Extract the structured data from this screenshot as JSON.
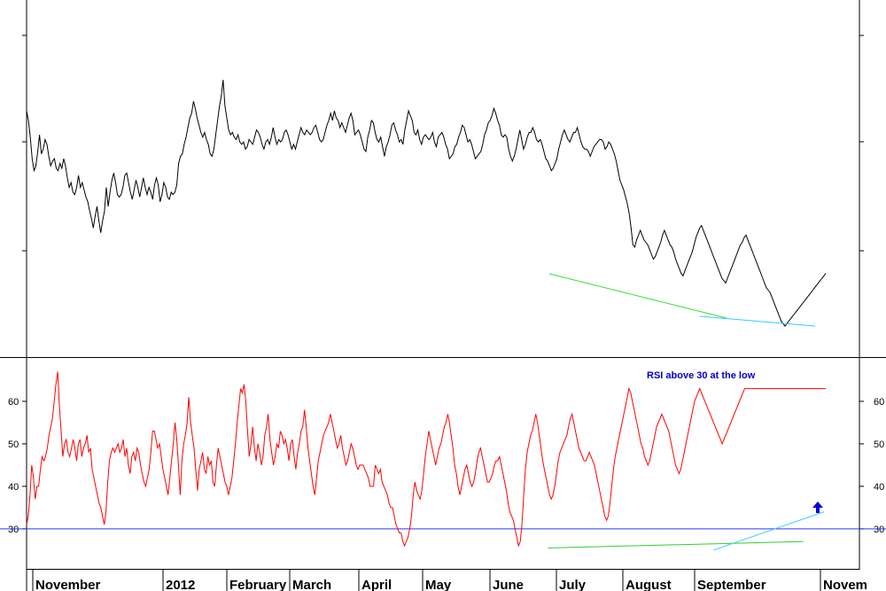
{
  "chart_data": [
    {
      "type": "line",
      "title": "",
      "xlabel": "",
      "ylabel": "",
      "x_axis_labels": [
        "November",
        "2012",
        "February",
        "March",
        "April",
        "May",
        "June",
        "July",
        "August",
        "September",
        "Novem"
      ],
      "y_scale": "relative",
      "series": [
        {
          "color": "#000000",
          "values": [
            30.0,
            28.0,
            24.5,
            20.0,
            17.5,
            18.5,
            21.5,
            25.0,
            21.0,
            22.0,
            24.0,
            23.0,
            20.5,
            18.5,
            19.5,
            20.0,
            18.0,
            17.5,
            19.0,
            18.0,
            20.0,
            18.5,
            16.0,
            14.0,
            15.0,
            13.0,
            12.5,
            14.0,
            16.5,
            14.0,
            15.0,
            13.5,
            12.0,
            11.0,
            9.0,
            7.5,
            5.5,
            8.0,
            10.0,
            7.0,
            4.5,
            7.0,
            9.0,
            14.0,
            10.0,
            13.0,
            15.5,
            17.0,
            15.0,
            12.5,
            12.0,
            12.5,
            14.0,
            16.5,
            17.0,
            15.0,
            13.0,
            11.5,
            13.5,
            15.5,
            14.0,
            12.0,
            14.0,
            16.0,
            14.0,
            12.5,
            14.0,
            13.0,
            11.5,
            14.5,
            16.0,
            14.5,
            11.0,
            12.5,
            15.0,
            14.0,
            12.0,
            11.5,
            13.0,
            12.5,
            13.0,
            14.5,
            19.0,
            20.5,
            21.0,
            23.0,
            24.5,
            26.5,
            28.5,
            29.5,
            32.0,
            30.5,
            28.5,
            27.0,
            25.5,
            24.5,
            25.5,
            24.0,
            23.0,
            21.0,
            20.5,
            22.0,
            25.0,
            28.0,
            31.0,
            33.0,
            36.5,
            31.0,
            28.5,
            26.0,
            25.0,
            25.5,
            24.5,
            24.0,
            25.0,
            23.5,
            23.0,
            23.5,
            22.0,
            22.5,
            24.0,
            23.5,
            23.0,
            24.5,
            26.0,
            25.5,
            24.5,
            23.0,
            22.0,
            23.5,
            24.0,
            23.0,
            24.5,
            26.5,
            24.5,
            23.0,
            24.0,
            23.5,
            24.0,
            25.5,
            26.0,
            25.0,
            23.5,
            22.0,
            23.0,
            22.0,
            23.5,
            25.0,
            26.5,
            25.5,
            25.0,
            26.0,
            25.5,
            25.0,
            25.5,
            26.5,
            27.0,
            25.5,
            24.0,
            23.5,
            24.0,
            25.5,
            27.0,
            28.0,
            29.5,
            28.0,
            30.0,
            28.5,
            28.0,
            26.5,
            27.5,
            26.5,
            25.5,
            27.0,
            28.5,
            29.5,
            28.0,
            25.0,
            25.5,
            26.0,
            25.0,
            23.5,
            22.0,
            21.5,
            24.5,
            26.0,
            28.0,
            27.5,
            25.5,
            24.0,
            23.5,
            24.5,
            22.5,
            20.5,
            22.5,
            23.5,
            25.0,
            27.0,
            27.5,
            26.0,
            25.0,
            23.5,
            24.0,
            23.0,
            26.0,
            28.0,
            30.0,
            29.0,
            28.0,
            25.5,
            25.0,
            26.0,
            24.0,
            23.0,
            24.5,
            25.0,
            24.5,
            24.0,
            24.5,
            25.5,
            23.5,
            22.5,
            24.5,
            25.0,
            25.5,
            24.5,
            23.0,
            22.0,
            20.0,
            20.5,
            21.0,
            22.5,
            23.0,
            24.5,
            25.5,
            27.0,
            26.5,
            25.0,
            23.5,
            24.0,
            23.0,
            21.5,
            20.0,
            20.5,
            21.0,
            21.5,
            23.0,
            25.0,
            26.0,
            27.5,
            28.0,
            29.0,
            30.5,
            29.5,
            28.0,
            27.0,
            25.0,
            24.5,
            25.0,
            24.5,
            22.0,
            20.5,
            19.5,
            20.5,
            22.0,
            24.0,
            26.0,
            24.0,
            22.0,
            23.0,
            24.5,
            25.5,
            25.5,
            26.5,
            25.5,
            24.0,
            23.5,
            24.0,
            23.0,
            21.5,
            20.0,
            19.5,
            18.5,
            17.5,
            18.0,
            19.0,
            20.0,
            22.0,
            23.5,
            25.0,
            26.0,
            25.0,
            24.0,
            23.5,
            24.5,
            25.5,
            25.5,
            26.5,
            25.0,
            23.5,
            22.5,
            22.0,
            22.0,
            21.5,
            20.5,
            21.5,
            22.5,
            23.0,
            23.5,
            24.0,
            24.0,
            23.5,
            22.0,
            22.5,
            23.5,
            23.0,
            22.0,
            21.0,
            19.5,
            17.5,
            15.5,
            14.5,
            13.5,
            12.0,
            10.5,
            8.5,
            5.5,
            2.0,
            1.5,
            3.0,
            4.0,
            5.0,
            4.0,
            3.0,
            2.5,
            2.0,
            1.0,
            0.0,
            -1.0,
            -0.5,
            0.5,
            1.5,
            2.5,
            4.0,
            5.0,
            4.0,
            3.0,
            2.0,
            1.5,
            0.5,
            -1.0,
            -2.0,
            -3.0,
            -4.0,
            -4.5,
            -3.5,
            -2.5,
            -1.5,
            -0.5,
            0.5,
            2.0,
            3.5,
            4.5,
            5.5,
            6.0,
            5.0,
            4.0,
            3.0,
            2.0,
            1.0,
            0.0,
            -1.0,
            -2.0,
            -3.0,
            -4.0,
            -5.0,
            -5.5,
            -6.0,
            -5.0,
            -4.0,
            -3.0,
            -2.0,
            -1.0,
            0.0,
            1.0,
            2.0,
            2.5,
            3.5,
            4.0,
            3.0,
            2.0,
            1.0,
            0.0,
            -1.0,
            -2.0,
            -3.0,
            -4.0,
            -5.0,
            -6.0,
            -7.0,
            -7.5,
            -8.0,
            -9.0,
            -10.0,
            -11.0,
            -12.0,
            -13.0,
            -14.0,
            -14.5,
            -15.0,
            -14.5,
            -14.0,
            -13.5,
            -13.0,
            -12.5,
            -12.0,
            -11.5,
            -11.0,
            -10.5,
            -10.0,
            -9.5,
            -9.0,
            -8.5,
            -8.0,
            -7.5,
            -7.0,
            -6.5,
            -6.0,
            -5.5,
            -5.0,
            -4.5,
            -4.0
          ]
        }
      ]
    },
    {
      "type": "line",
      "title": "",
      "xlabel": "",
      "ylabel": "",
      "ylim": [
        21,
        70
      ],
      "y_ticks": [
        30,
        40,
        50,
        60
      ],
      "y_tick_labels": [
        "30",
        "40",
        "50",
        "60"
      ],
      "x_axis_labels": [
        "November",
        "2012",
        "February",
        "March",
        "April",
        "May",
        "June",
        "July",
        "August",
        "September",
        "Novem"
      ],
      "reference_lines": [
        {
          "y": 30,
          "color": "#3333ff"
        }
      ],
      "trend_lines": [
        {
          "color": "#33cc33",
          "from": {
            "x_index": 302,
            "y": 25.5
          },
          "to": {
            "x_index": 450,
            "y": 27.0
          }
        },
        {
          "color": "#33ccff",
          "from": {
            "x_index": 398,
            "y": 25.0
          },
          "to": {
            "x_index": 462,
            "y": 34.0
          }
        }
      ],
      "annotations": [
        {
          "text": "RSI above 30 at the low",
          "color": "#0000cc"
        }
      ],
      "series": [
        {
          "color": "#ff0000",
          "values": [
            31,
            33,
            38,
            45,
            42,
            37,
            40,
            40,
            44,
            47,
            46,
            47,
            49,
            52,
            54,
            56,
            60,
            64,
            67,
            59,
            53,
            47,
            50,
            51,
            48,
            47,
            49,
            51,
            49,
            46,
            50,
            51,
            47,
            49,
            50,
            52,
            48,
            49,
            44,
            42,
            40,
            38,
            36,
            35,
            33,
            31,
            34,
            41,
            46,
            48,
            49,
            48,
            49,
            50,
            48,
            49,
            51,
            47,
            49,
            45,
            43,
            47,
            48,
            46,
            49,
            48,
            45,
            43,
            41,
            40,
            42,
            44,
            48,
            53,
            53,
            51,
            49,
            50,
            47,
            44,
            42,
            40,
            38,
            42,
            46,
            50,
            55,
            51,
            45,
            38,
            46,
            50,
            52,
            55,
            61,
            55,
            52,
            49,
            44,
            39,
            44,
            46,
            48,
            44,
            43,
            47,
            45,
            46,
            41,
            40,
            45,
            49,
            47,
            45,
            43,
            41,
            40,
            38,
            40,
            42,
            46,
            50,
            55,
            59,
            63,
            62,
            64,
            60,
            53,
            47,
            50,
            54,
            49,
            46,
            50,
            48,
            45,
            47,
            52,
            54,
            57,
            51,
            48,
            45,
            47,
            50,
            49,
            53,
            52,
            50,
            51,
            49,
            46,
            50,
            51,
            47,
            44,
            48,
            50,
            53,
            54,
            58,
            54,
            49,
            46,
            43,
            40,
            38,
            42,
            46,
            48,
            50,
            52,
            53,
            54,
            55,
            57,
            55,
            53,
            51,
            49,
            50,
            52,
            49,
            47,
            45,
            46,
            48,
            50,
            49,
            47,
            45,
            44,
            45,
            45,
            45,
            44,
            43,
            42,
            40,
            40,
            40,
            45,
            44,
            43,
            44,
            41,
            40,
            39,
            38,
            36,
            35,
            35,
            33,
            31,
            30,
            29,
            29,
            27,
            26,
            27,
            28,
            30,
            33,
            38,
            41,
            39,
            38,
            37,
            39,
            43,
            47,
            50,
            53,
            51,
            49,
            47,
            45,
            47,
            49,
            50,
            52,
            54,
            55,
            57,
            55,
            52,
            49,
            45,
            43,
            40,
            38,
            40,
            42,
            44,
            45,
            43,
            41,
            40,
            41,
            43,
            46,
            48,
            49,
            47,
            45,
            43,
            41,
            41,
            42,
            43,
            45,
            46,
            46,
            47,
            45,
            43,
            41,
            39,
            36,
            34,
            33,
            32,
            30,
            28,
            26,
            27,
            31,
            38,
            44,
            48,
            50,
            52,
            53,
            55,
            57,
            55,
            52,
            49,
            46,
            44,
            42,
            40,
            38,
            37,
            38,
            40,
            43,
            46,
            48,
            49,
            50,
            51,
            52,
            54,
            56,
            57,
            55,
            53,
            51,
            49,
            48,
            47,
            46,
            46,
            47,
            48,
            47,
            46,
            45,
            43,
            41,
            39,
            37,
            35,
            33,
            32,
            33,
            36,
            40,
            44,
            47,
            49,
            51,
            53,
            55,
            57,
            59,
            61,
            63,
            62,
            60,
            58,
            56,
            54,
            52,
            50,
            49,
            47,
            46,
            45,
            46,
            48,
            50,
            52,
            54,
            55,
            56,
            57,
            56,
            55,
            54,
            53,
            51,
            49,
            47,
            45,
            44,
            43,
            44,
            46,
            48,
            50,
            52,
            54,
            56,
            58,
            60,
            61,
            62,
            63,
            62,
            61,
            60,
            59,
            58,
            57,
            56,
            55,
            54,
            53,
            52,
            51,
            50,
            51,
            52,
            53,
            54,
            55,
            56,
            57,
            58,
            59,
            60,
            61,
            62,
            63,
            63,
            63,
            63,
            63,
            63,
            63,
            63,
            63,
            63,
            63,
            63,
            63,
            63,
            63,
            63,
            63,
            63,
            63,
            63,
            63,
            63,
            63,
            63,
            63,
            63,
            63,
            63,
            63,
            63,
            63,
            63,
            63,
            63,
            63,
            63,
            63,
            63,
            63,
            63,
            63,
            63,
            63,
            63,
            63,
            63,
            63,
            63
          ]
        }
      ]
    }
  ]
}
